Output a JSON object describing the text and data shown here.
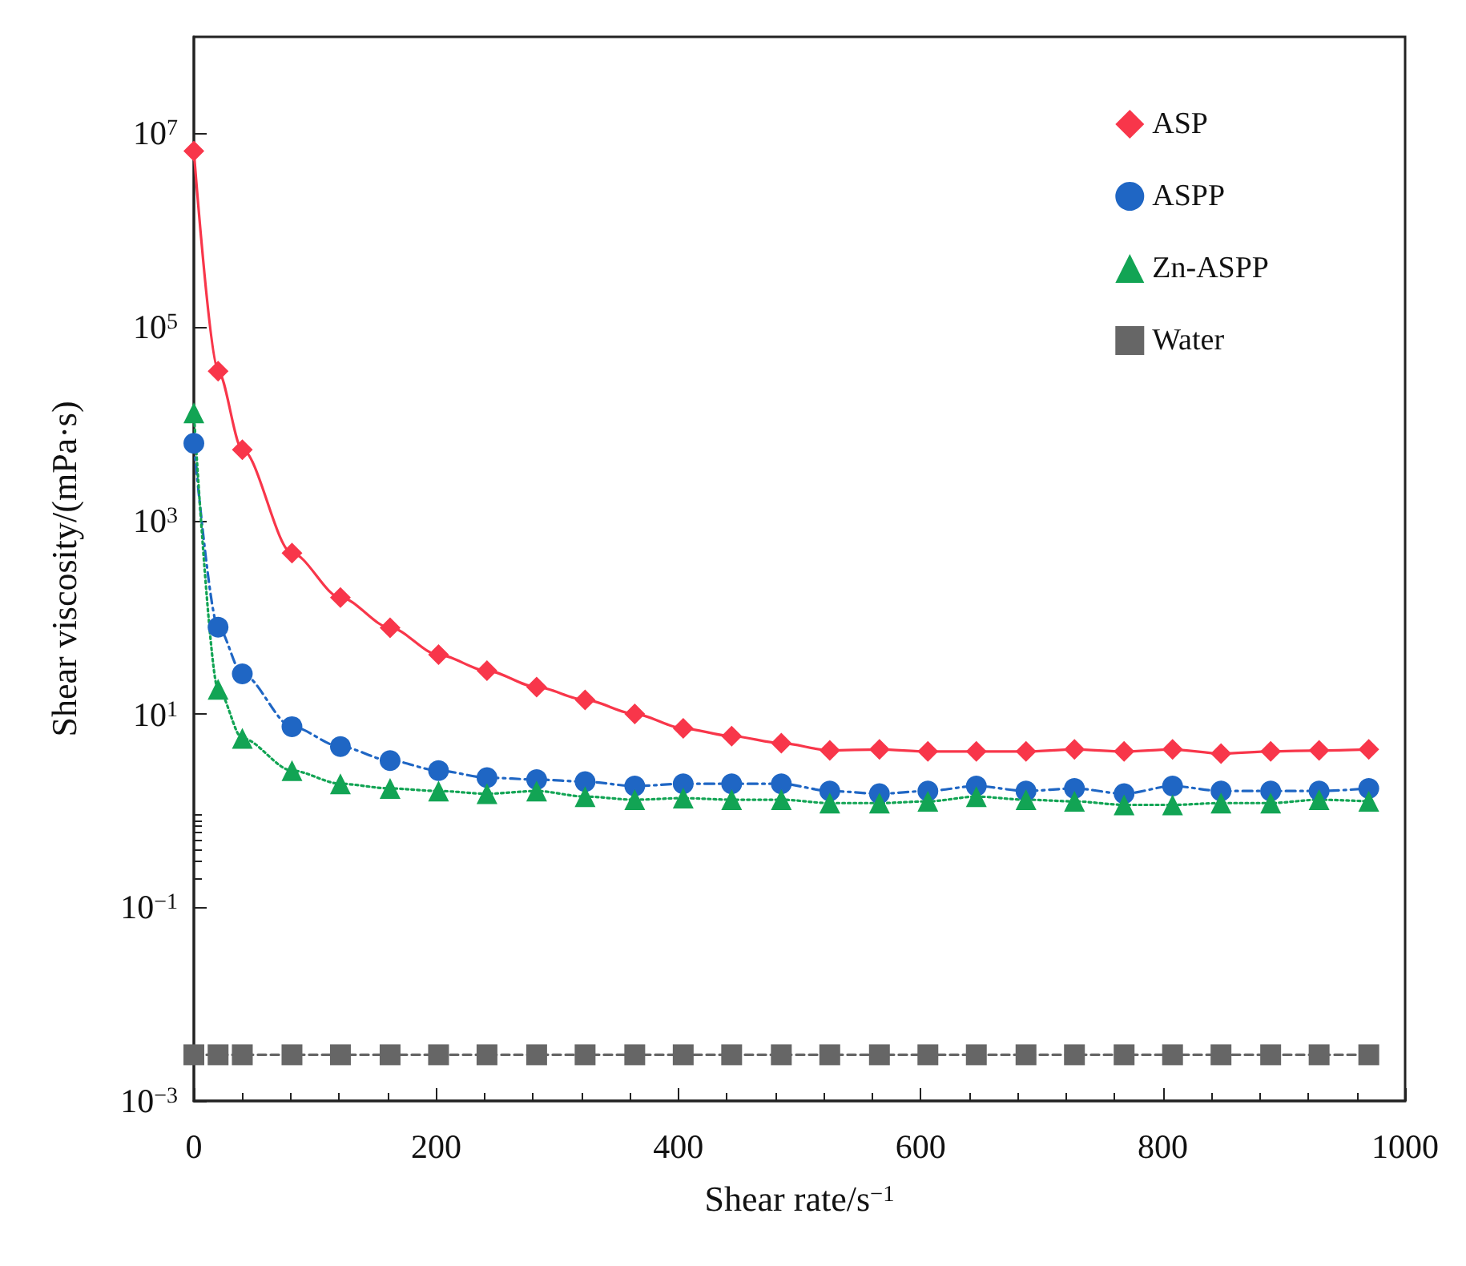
{
  "chart_data": {
    "type": "line",
    "xlabel": "Shear rate/s$^{−1}$",
    "ylabel": "Shear viscosity/(mPa·s)",
    "x": [
      0,
      20,
      40,
      81,
      121,
      162,
      202,
      242,
      283,
      323,
      364,
      404,
      444,
      485,
      525,
      566,
      606,
      646,
      687,
      727,
      768,
      808,
      848,
      889,
      929,
      970
    ],
    "series": [
      {
        "name": "ASP",
        "color": "#f8364a",
        "marker": "diamond",
        "line_style": "solid",
        "values": [
          6600000,
          35000,
          5400,
          460,
          160,
          78,
          41,
          28,
          19,
          14,
          10,
          7.1,
          5.9,
          5,
          4.2,
          4.3,
          4.1,
          4.1,
          4.1,
          4.3,
          4.1,
          4.3,
          3.9,
          4.1,
          4.2,
          4.3
        ]
      },
      {
        "name": "ASPP",
        "color": "#1f66c4",
        "marker": "circle",
        "line_style": "dashdot",
        "values": [
          6300,
          79,
          26,
          7.4,
          4.6,
          3.3,
          2.6,
          2.2,
          2.1,
          2,
          1.8,
          1.9,
          1.9,
          1.9,
          1.6,
          1.5,
          1.6,
          1.8,
          1.6,
          1.7,
          1.5,
          1.8,
          1.6,
          1.6,
          1.6,
          1.7
        ]
      },
      {
        "name": "Zn-ASPP",
        "color": "#12a454",
        "marker": "triangle",
        "line_style": "dotted",
        "values": [
          13000,
          18,
          5.6,
          2.6,
          1.9,
          1.7,
          1.6,
          1.5,
          1.6,
          1.4,
          1.3,
          1.35,
          1.3,
          1.3,
          1.2,
          1.2,
          1.25,
          1.4,
          1.3,
          1.25,
          1.15,
          1.15,
          1.2,
          1.2,
          1.3,
          1.25
        ]
      },
      {
        "name": "Water",
        "color": "#666666",
        "marker": "square",
        "line_style": "dashed",
        "values": [
          0.003,
          0.003,
          0.003,
          0.003,
          0.003,
          0.003,
          0.003,
          0.003,
          0.003,
          0.003,
          0.003,
          0.003,
          0.003,
          0.003,
          0.003,
          0.003,
          0.003,
          0.003,
          0.003,
          0.003,
          0.003,
          0.003,
          0.003,
          0.003,
          0.003,
          0.003
        ]
      }
    ],
    "log": "y",
    "xlim": [
      0,
      1000
    ],
    "xticks": [
      0,
      200,
      400,
      600,
      800,
      1000
    ],
    "ylim": [
      0.001,
      100000000
    ],
    "yticks": [
      {
        "value": 0.001,
        "label": "10$^{−3}$"
      },
      {
        "value": 0.1,
        "label": "10$^{−1}$"
      },
      {
        "value": 10,
        "label": "10$^{1}$"
      },
      {
        "value": 1000,
        "label": "10$^{3}$"
      },
      {
        "value": 100000,
        "label": "10$^{5}$"
      },
      {
        "value": 10000000,
        "label": "10$^{7}$"
      }
    ],
    "grid": false,
    "legend": "top right"
  }
}
